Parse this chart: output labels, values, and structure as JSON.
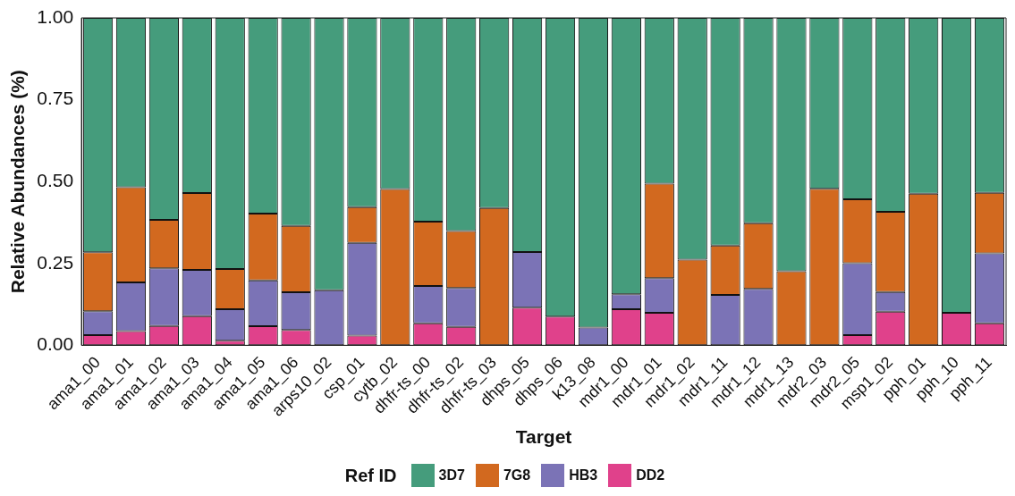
{
  "chart_data": {
    "type": "bar",
    "stacked": true,
    "xlabel": "Target",
    "ylabel": "Relative Abundances (%)",
    "legend_title": "Ref ID",
    "legend": "bottom",
    "grid": false,
    "categories": [
      "ama1_00",
      "ama1_01",
      "ama1_02",
      "ama1_03",
      "ama1_04",
      "ama1_05",
      "ama1_06",
      "arps10_02",
      "csp_01",
      "cytb_02",
      "dhfr-ts_00",
      "dhfr-ts_02",
      "dhfr-ts_03",
      "dhps_05",
      "dhps_06",
      "k13_08",
      "mdr1_00",
      "mdr1_01",
      "mdr1_02",
      "mdr1_11",
      "mdr1_12",
      "mdr1_13",
      "mdr2_03",
      "mdr2_05",
      "msp1_02",
      "pph_01",
      "pph_10",
      "pph_11"
    ],
    "ylim": [
      0,
      1
    ],
    "yticks": [
      {
        "value": 0,
        "label": "0.00"
      },
      {
        "value": 0.25,
        "label": "0.25"
      },
      {
        "value": 0.5,
        "label": "0.50"
      },
      {
        "value": 0.75,
        "label": "0.75"
      },
      {
        "value": 1,
        "label": "1.00"
      }
    ],
    "series": [
      {
        "name": "DD2",
        "color": "#e0418b",
        "values": [
          0.031,
          0.043,
          0.059,
          0.089,
          0.014,
          0.058,
          0.047,
          0,
          0.03,
          0,
          0.067,
          0.056,
          0,
          0.115,
          0.088,
          0,
          0.11,
          0.099,
          0,
          0,
          0,
          0,
          0,
          0.031,
          0.103,
          0,
          0.099,
          0.067
        ]
      },
      {
        "name": "HB3",
        "color": "#7b73b6",
        "values": [
          0.073,
          0.149,
          0.176,
          0.141,
          0.096,
          0.14,
          0.115,
          0.168,
          0.283,
          0,
          0.114,
          0.119,
          0,
          0.17,
          0,
          0.054,
          0.046,
          0.106,
          0,
          0.154,
          0.172,
          0,
          0,
          0.22,
          0.06,
          0,
          0,
          0.214
        ]
      },
      {
        "name": "7G8",
        "color": "#d2691f",
        "values": [
          0.18,
          0.291,
          0.148,
          0.235,
          0.123,
          0.204,
          0.203,
          0,
          0.109,
          0.477,
          0.197,
          0.174,
          0.419,
          0,
          0,
          0,
          0,
          0.289,
          0.262,
          0.151,
          0.201,
          0.226,
          0.478,
          0.195,
          0.245,
          0.463,
          0,
          0.185
        ]
      },
      {
        "name": "3D7",
        "color": "#459c7c",
        "values": [
          0.716,
          0.517,
          0.617,
          0.535,
          0.767,
          0.598,
          0.635,
          0.832,
          0.578,
          0.523,
          0.622,
          0.651,
          0.581,
          0.715,
          0.912,
          0.946,
          0.844,
          0.506,
          0.738,
          0.695,
          0.627,
          0.774,
          0.522,
          0.554,
          0.592,
          0.537,
          0.901,
          0.534
        ]
      }
    ]
  }
}
